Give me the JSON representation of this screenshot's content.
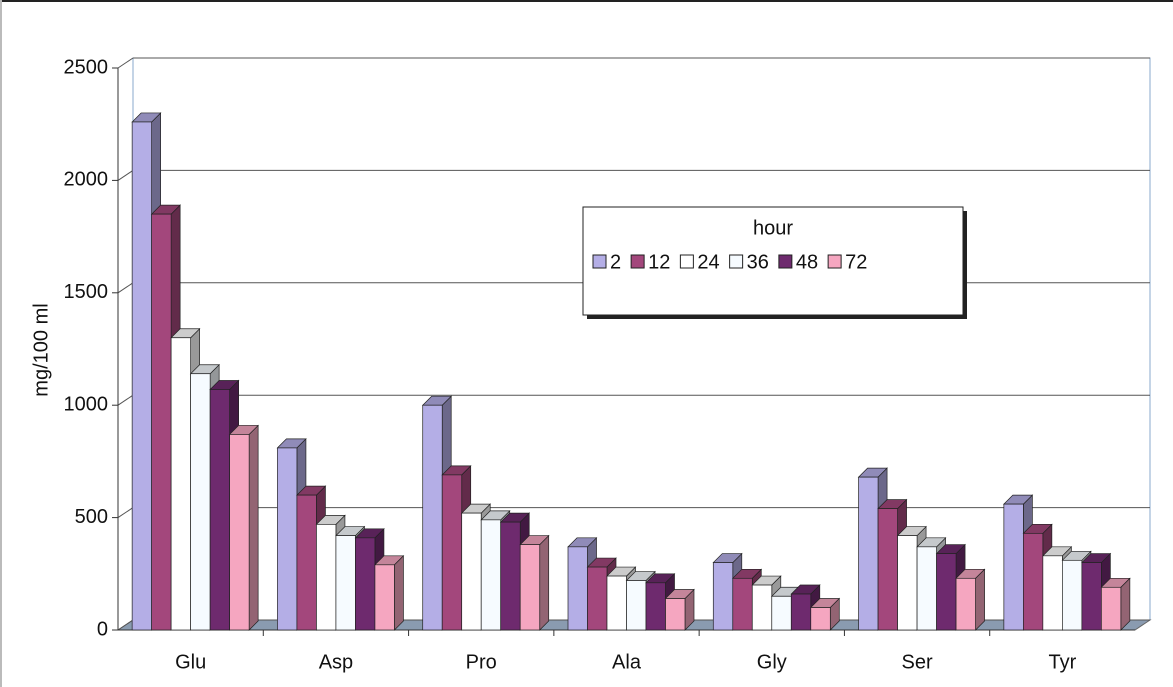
{
  "chart_data": {
    "type": "bar3d",
    "y_label": "mg/100 ml",
    "legend_title": "hour",
    "legend_position": "upper-center",
    "categories": [
      "Glu",
      "Asp",
      "Pro",
      "Ala",
      "Gly",
      "Ser",
      "Tyr"
    ],
    "series": [
      {
        "name": "2",
        "color": "#b4aee6",
        "values": [
          2260,
          810,
          1000,
          370,
          300,
          680,
          560
        ]
      },
      {
        "name": "12",
        "color": "#a3477c",
        "values": [
          1850,
          600,
          690,
          280,
          230,
          540,
          430
        ]
      },
      {
        "name": "24",
        "color": "#ffffff",
        "values": [
          1300,
          470,
          520,
          240,
          200,
          420,
          330
        ]
      },
      {
        "name": "36",
        "color": "#f6fbff",
        "values": [
          1140,
          420,
          490,
          220,
          150,
          370,
          310
        ]
      },
      {
        "name": "48",
        "color": "#6e2a6e",
        "values": [
          1070,
          410,
          480,
          210,
          160,
          340,
          300
        ]
      },
      {
        "name": "72",
        "color": "#f5a6c0",
        "values": [
          870,
          290,
          380,
          140,
          100,
          230,
          190
        ]
      }
    ],
    "ylim": [
      0,
      2500
    ],
    "yticks": [
      0,
      500,
      1000,
      1500,
      2000,
      2500
    ],
    "grid": true
  }
}
